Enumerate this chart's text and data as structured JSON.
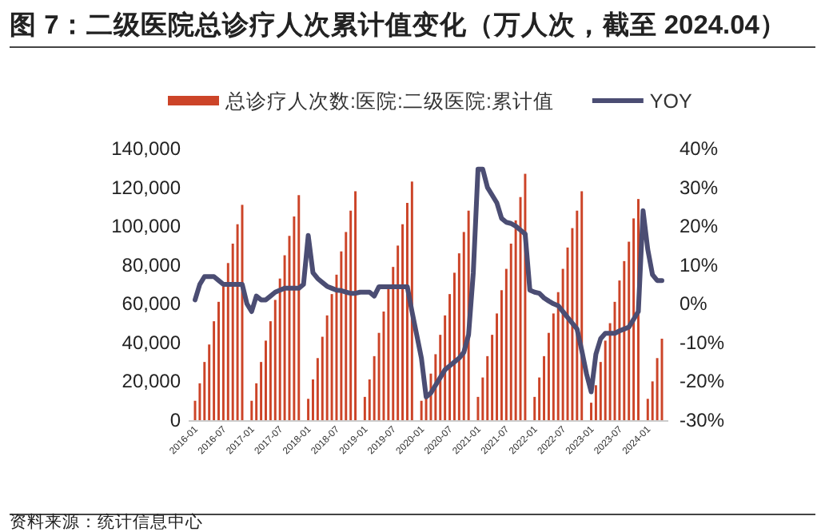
{
  "chart_data": {
    "type": "bar",
    "title": "图 7：二级医院总诊疗人次累计值变化（万人次，截至 2024.04）",
    "categories": [
      "2016-01",
      null,
      null,
      null,
      null,
      null,
      "2016-07",
      null,
      null,
      null,
      null,
      null,
      "2017-01",
      null,
      null,
      null,
      null,
      null,
      "2017-07",
      null,
      null,
      null,
      null,
      null,
      "2018-01",
      null,
      null,
      null,
      null,
      null,
      "2018-07",
      null,
      null,
      null,
      null,
      null,
      "2019-01",
      null,
      null,
      null,
      null,
      null,
      "2019-07",
      null,
      null,
      null,
      null,
      null,
      "2020-01",
      null,
      null,
      null,
      null,
      null,
      "2020-07",
      null,
      null,
      null,
      null,
      null,
      "2021-01",
      null,
      null,
      null,
      null,
      null,
      "2021-07",
      null,
      null,
      null,
      null,
      null,
      "2022-01",
      null,
      null,
      null,
      null,
      null,
      "2022-07",
      null,
      null,
      null,
      null,
      null,
      "2023-01",
      null,
      null,
      null,
      null,
      null,
      "2023-07",
      null,
      null,
      null,
      null,
      null,
      "2024-01",
      null,
      null,
      null
    ],
    "series": [
      {
        "name": "总诊疗人次数:医院:二级医院:累计值",
        "color": "#cc4428",
        "values": [
          10000,
          19000,
          30000,
          39000,
          51000,
          61000,
          69000,
          81000,
          91000,
          101000,
          111000,
          null,
          10000,
          19000,
          30000,
          41000,
          51000,
          62000,
          73000,
          85000,
          95000,
          105000,
          116000,
          null,
          11000,
          21000,
          32000,
          43000,
          54000,
          65000,
          75000,
          87000,
          97000,
          108000,
          118000,
          null,
          12000,
          21000,
          33000,
          45000,
          56000,
          68000,
          79000,
          90000,
          101000,
          112000,
          123000,
          null,
          10000,
          15000,
          24000,
          34000,
          44000,
          54000,
          65000,
          76000,
          86000,
          97000,
          108000,
          null,
          12000,
          22000,
          33000,
          44000,
          55000,
          67000,
          78000,
          91000,
          103000,
          115000,
          127000,
          null,
          12000,
          22000,
          33000,
          45000,
          55000,
          66000,
          78000,
          89000,
          99000,
          108000,
          118000,
          null,
          9000,
          18000,
          30000,
          41000,
          50000,
          61000,
          72000,
          82000,
          92000,
          104000,
          114000,
          null,
          11000,
          20000,
          32000,
          42000
        ]
      },
      {
        "name": "YOY",
        "type": "line",
        "axis": "y2",
        "color": "#4b4d73",
        "values": [
          1,
          5,
          7,
          7,
          7,
          6,
          5,
          5,
          5,
          5,
          5,
          0,
          -2,
          2,
          1,
          1,
          2,
          3,
          3.5,
          4,
          4,
          4,
          4,
          5,
          17.6,
          8,
          6.5,
          5.5,
          4.5,
          4,
          3.5,
          3.4,
          3,
          2.7,
          2.7,
          3,
          3,
          3,
          2,
          4.4,
          4.4,
          4.4,
          4.4,
          4.4,
          4.4,
          4.4,
          -2,
          -8,
          -14,
          -24,
          -23,
          -21,
          -19,
          -17,
          -16,
          -15,
          -14,
          -12.5,
          -8,
          8,
          34.7,
          34.7,
          30,
          28,
          26,
          22,
          21,
          20.7,
          20,
          19,
          18,
          3.5,
          3,
          2.7,
          1.5,
          0.7,
          0,
          -0.5,
          -2,
          -3.5,
          -5,
          -6.5,
          -12,
          -18,
          -22.7,
          -13,
          -9,
          -7.6,
          -7.6,
          -7.6,
          -7,
          -6.5,
          -6,
          -4,
          -2,
          24,
          14,
          7.5,
          6,
          6
        ]
      }
    ],
    "ylim": [
      0,
      140000
    ],
    "yticks": [
      {
        "value": 0,
        "label": "0"
      },
      {
        "value": 20000,
        "label": "20,000"
      },
      {
        "value": 40000,
        "label": "40,000"
      },
      {
        "value": 60000,
        "label": "60,000"
      },
      {
        "value": 80000,
        "label": "80,000"
      },
      {
        "value": 100000,
        "label": "100,000"
      },
      {
        "value": 120000,
        "label": "120,000"
      },
      {
        "value": 140000,
        "label": "140,000"
      }
    ],
    "y2lim": [
      -30,
      40
    ],
    "y2ticks": [
      {
        "value": -30,
        "label": "-30%"
      },
      {
        "value": -20,
        "label": "-20%"
      },
      {
        "value": -10,
        "label": "-10%"
      },
      {
        "value": 0,
        "label": "0%"
      },
      {
        "value": 10,
        "label": "10%"
      },
      {
        "value": 20,
        "label": "20%"
      },
      {
        "value": 30,
        "label": "30%"
      },
      {
        "value": 40,
        "label": "40%"
      }
    ],
    "legend": "top",
    "marker": "none",
    "line_style": "solid",
    "annotations": [
      "资料来源：统计信息中心"
    ]
  }
}
